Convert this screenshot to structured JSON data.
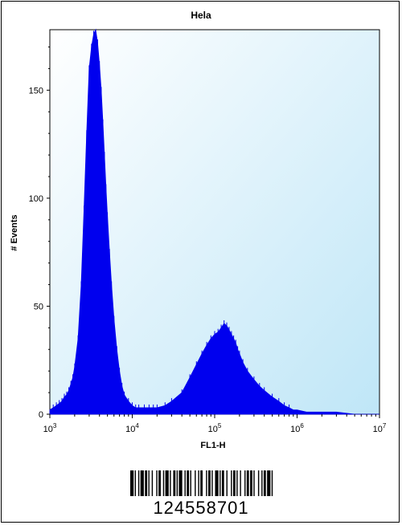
{
  "chart_data": {
    "type": "area",
    "title": "Hela",
    "xlabel": "FL1-H",
    "ylabel": "# Events",
    "x_scale": "log",
    "xlim": [
      1000,
      10000000
    ],
    "ylim": [
      0,
      178
    ],
    "x_ticks": [
      {
        "base": "10",
        "exp": "3"
      },
      {
        "base": "10",
        "exp": "4"
      },
      {
        "base": "10",
        "exp": "5"
      },
      {
        "base": "10",
        "exp": "6"
      },
      {
        "base": "10",
        "exp": "7"
      }
    ],
    "y_ticks": [
      0,
      50,
      100,
      150
    ],
    "plot_background": "#bfe6f7",
    "fill_color": "#0000ee",
    "series": [
      {
        "x": [
          1000,
          1100,
          1200,
          1300,
          1400,
          1500,
          1600,
          1700,
          1800,
          1900,
          2000,
          2200,
          2400,
          2600,
          2800,
          3000,
          3200,
          3400,
          3600,
          3800,
          4000,
          4200,
          4400,
          4600,
          4800,
          5000,
          5300,
          5600,
          6000,
          6500,
          7000,
          7500,
          8000,
          9000,
          10000,
          11000,
          12000,
          14000,
          16000,
          18000,
          20000,
          25000,
          30000,
          40000,
          50000,
          60000,
          70000,
          80000,
          90000,
          100000,
          110000,
          120000,
          130000,
          140000,
          150000,
          160000,
          170000,
          180000,
          190000,
          200000,
          220000,
          250000,
          300000,
          350000,
          400000,
          500000,
          600000,
          700000,
          800000,
          900000,
          1000000,
          1300000,
          2000000,
          3000000,
          5000000,
          7000000,
          10000000
        ],
        "y": [
          2,
          3,
          4,
          5,
          6,
          8,
          9,
          11,
          14,
          17,
          22,
          35,
          60,
          95,
          130,
          160,
          170,
          176,
          178,
          172,
          162,
          150,
          135,
          120,
          105,
          92,
          75,
          60,
          44,
          30,
          20,
          13,
          9,
          6,
          4,
          3,
          3,
          3,
          3,
          3,
          3,
          4,
          6,
          10,
          17,
          23,
          28,
          32,
          35,
          37,
          38,
          40,
          42,
          41,
          39,
          37,
          35,
          33,
          30,
          28,
          24,
          20,
          16,
          13,
          11,
          8,
          6,
          4,
          3,
          2,
          2,
          1,
          1,
          1,
          0,
          0,
          0
        ]
      }
    ]
  },
  "barcode": {
    "number": "124558701",
    "bars": [
      3,
      1,
      1,
      2,
      1,
      1,
      3,
      1,
      2,
      1,
      1,
      2,
      1,
      3,
      1,
      1,
      2,
      2,
      1,
      1,
      3,
      1,
      1,
      2,
      2,
      1,
      1,
      1,
      3,
      2,
      1,
      1,
      2,
      1,
      1,
      3,
      1,
      2,
      1,
      1,
      2,
      3,
      1,
      1,
      2,
      1,
      1,
      2,
      3,
      1,
      1,
      1,
      2,
      2,
      1,
      3,
      1,
      1,
      2,
      1,
      1,
      2,
      1,
      3,
      1,
      1,
      2,
      1,
      2,
      1,
      1,
      3,
      1,
      2,
      1,
      1,
      2,
      1,
      3,
      1,
      1,
      2
    ]
  }
}
